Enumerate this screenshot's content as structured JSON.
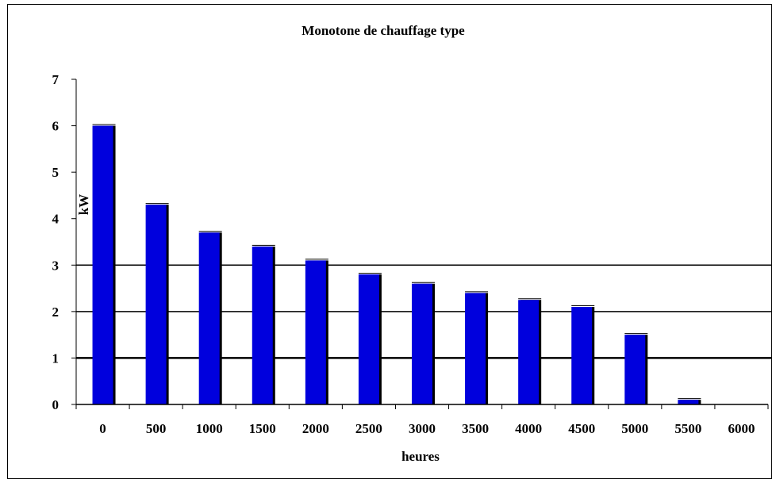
{
  "chart_data": {
    "type": "bar",
    "title": "Monotone de chauffage type",
    "xlabel": "heures",
    "ylabel": "kW",
    "categories": [
      "0",
      "500",
      "1000",
      "1500",
      "2000",
      "2500",
      "3000",
      "3500",
      "4000",
      "4500",
      "5000",
      "5500",
      "6000"
    ],
    "values": [
      6.0,
      4.3,
      3.7,
      3.4,
      3.1,
      2.8,
      2.6,
      2.4,
      2.25,
      2.1,
      1.5,
      0.1,
      0
    ],
    "y_ticks": [
      "0",
      "1",
      "2",
      "3",
      "4",
      "5",
      "6",
      "7"
    ],
    "ylim": [
      0,
      7
    ],
    "grid": "major horizontal lines at 1, 2, 3",
    "legend": "none",
    "colors": {
      "bar": "#0000dd",
      "bar_shadow": "#000000",
      "axis": "#000000",
      "background": "#ffffff"
    }
  }
}
